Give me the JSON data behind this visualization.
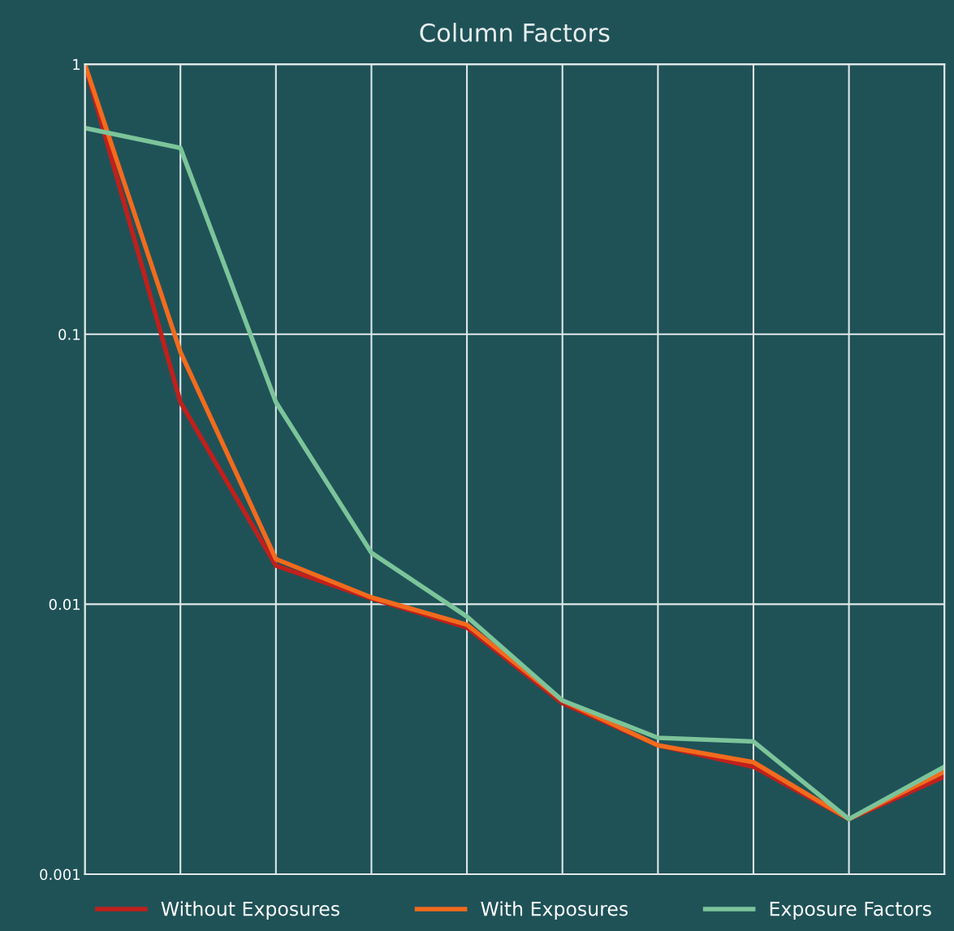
{
  "chart_data": {
    "type": "line",
    "title": "Column Factors",
    "categories": [
      null,
      null,
      null,
      null,
      null,
      null,
      null,
      null,
      null,
      null
    ],
    "series": [
      {
        "name": "Without Exposures",
        "color": "#c0201c",
        "values": [
          1,
          0.056,
          0.0139,
          0.0105,
          0.0082,
          0.0043,
          0.003,
          0.0025,
          0.0016,
          0.0023
        ]
      },
      {
        "name": "With Exposures",
        "color": "#f26b1d",
        "values": [
          1,
          0.086,
          0.0147,
          0.0106,
          0.0084,
          0.0044,
          0.003,
          0.0026,
          0.0016,
          0.0024
        ]
      },
      {
        "name": "Exposure Factors",
        "color": "#7cc49a",
        "values": [
          0.58,
          0.49,
          0.056,
          0.0155,
          0.009,
          0.0044,
          0.0032,
          0.0031,
          0.0016,
          0.0025
        ]
      }
    ],
    "log": "y",
    "ylim": [
      0.001,
      1
    ],
    "yticks": [
      {
        "value": 0.001,
        "label": "0.001"
      },
      {
        "value": 0.01,
        "label": "0.01"
      },
      {
        "value": 0.1,
        "label": "0.1"
      },
      {
        "value": 1,
        "label": "1"
      }
    ],
    "grid": true,
    "legend": "bottom",
    "marker": "none",
    "line_style": "solid",
    "tick_labels": "y"
  }
}
